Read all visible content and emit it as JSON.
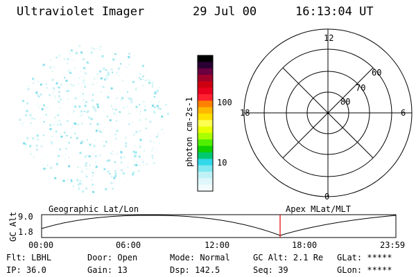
{
  "header": {
    "title": "Ultraviolet Imager",
    "date": "29 Jul 00",
    "time": "16:13:04 UT"
  },
  "colorbar": {
    "label": "photon cm-2s-1",
    "ticks": [
      "100",
      "10"
    ],
    "colors": [
      "#000000",
      "#2a0033",
      "#6a0040",
      "#a0002a",
      "#cc0010",
      "#e8001e",
      "#ff2030",
      "#ff8000",
      "#ffb800",
      "#ffe000",
      "#ffff50",
      "#e8ff00",
      "#aaff00",
      "#50ee00",
      "#10d000",
      "#00c870",
      "#30d8e8",
      "#80e8f0",
      "#bff2f6",
      "#dff7fa",
      "#f3fcfd"
    ]
  },
  "polar": {
    "mlt_labels": [
      "12",
      "18",
      "6",
      "0"
    ],
    "lat_labels": [
      "60",
      "70",
      "80"
    ]
  },
  "timeline": {
    "left_label": "Geographic Lat/Lon",
    "right_label": "Apex MLat/MLT",
    "axis_label": "GC Alt",
    "y_ticks": [
      "9.0",
      "1.8"
    ],
    "x_ticks": [
      "00:00",
      "06:00",
      "12:00",
      "18:00",
      "23:59"
    ],
    "marker_color": "#e00000"
  },
  "info": {
    "row1": [
      {
        "label": "Flt:",
        "value": "LBHL"
      },
      {
        "label": "Door:",
        "value": "Open"
      },
      {
        "label": "Mode:",
        "value": "Normal"
      },
      {
        "label": "GC Alt:",
        "value": "2.1 Re"
      },
      {
        "label": "GLat:",
        "value": "*****"
      }
    ],
    "row2": [
      {
        "label": "IP:",
        "value": "36.0"
      },
      {
        "label": "Gain:",
        "value": "13"
      },
      {
        "label": "Dsp:",
        "value": "142.5"
      },
      {
        "label": "Seq:",
        "value": "39"
      },
      {
        "label": "GLon:",
        "value": "*****"
      }
    ]
  }
}
